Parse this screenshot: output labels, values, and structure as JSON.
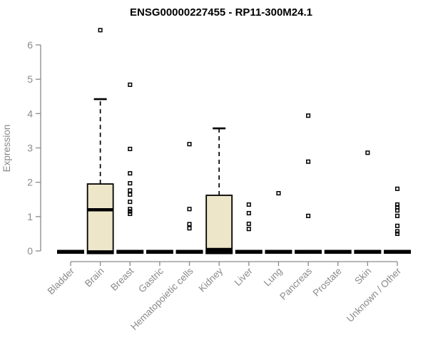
{
  "chart_data": {
    "type": "boxplot",
    "title": "ENSG00000227455 - RP11-300M24.1",
    "xlabel": "",
    "ylabel": "Expression",
    "ylim": [
      0,
      6
    ],
    "yticks": [
      0,
      1,
      2,
      3,
      4,
      5,
      6
    ],
    "grid": false,
    "legend": false,
    "categories": [
      "Bladder",
      "Brain",
      "Breast",
      "Gastric",
      "Hematopoietic cells",
      "Kidney",
      "Liver",
      "Lung",
      "Pancreas",
      "Prostate",
      "Skin",
      "Unknown / Other"
    ],
    "boxes": [
      {
        "category": "Bladder",
        "q1": 0,
        "median": 0,
        "q3": 0,
        "whisker_low": 0,
        "whisker_high": 0,
        "outliers": []
      },
      {
        "category": "Brain",
        "q1": 0,
        "median": 1.2,
        "q3": 1.95,
        "whisker_low": 0,
        "whisker_high": 4.42,
        "outliers": [
          6.43
        ]
      },
      {
        "category": "Breast",
        "q1": 0,
        "median": 0,
        "q3": 0,
        "whisker_low": 0,
        "whisker_high": 0,
        "outliers": [
          4.84,
          2.97,
          2.26,
          1.97,
          1.76,
          1.64,
          1.43,
          1.22,
          1.15,
          1.08
        ]
      },
      {
        "category": "Gastric",
        "q1": 0,
        "median": 0,
        "q3": 0,
        "whisker_low": 0,
        "whisker_high": 0,
        "outliers": []
      },
      {
        "category": "Hematopoietic cells",
        "q1": 0,
        "median": 0,
        "q3": 0,
        "whisker_low": 0,
        "whisker_high": 0,
        "outliers": [
          3.11,
          1.22,
          0.78,
          0.66
        ]
      },
      {
        "category": "Kidney",
        "q1": 0,
        "median": 0,
        "q3": 1.62,
        "whisker_low": 0,
        "whisker_high": 3.57,
        "outliers": []
      },
      {
        "category": "Liver",
        "q1": 0,
        "median": 0,
        "q3": 0,
        "whisker_low": 0,
        "whisker_high": 0,
        "outliers": [
          1.35,
          1.1,
          0.79,
          0.64
        ]
      },
      {
        "category": "Lung",
        "q1": 0,
        "median": 0,
        "q3": 0,
        "whisker_low": 0,
        "whisker_high": 0,
        "outliers": [
          1.68
        ]
      },
      {
        "category": "Pancreas",
        "q1": 0,
        "median": 0,
        "q3": 0,
        "whisker_low": 0,
        "whisker_high": 0,
        "outliers": [
          3.94,
          2.6,
          1.02
        ]
      },
      {
        "category": "Prostate",
        "q1": 0,
        "median": 0,
        "q3": 0,
        "whisker_low": 0,
        "whisker_high": 0,
        "outliers": []
      },
      {
        "category": "Skin",
        "q1": 0,
        "median": 0,
        "q3": 0,
        "whisker_low": 0,
        "whisker_high": 0,
        "outliers": [
          2.86
        ]
      },
      {
        "category": "Unknown / Other",
        "q1": 0,
        "median": 0,
        "q3": 0,
        "whisker_low": 0,
        "whisker_high": 0,
        "outliers": [
          1.81,
          1.35,
          1.27,
          1.18,
          1.02,
          0.73,
          0.57,
          0.5
        ]
      }
    ],
    "colors": {
      "box_fill": "#EDE6C9",
      "box_border": "#000000",
      "median": "#000000",
      "whisker": "#000000",
      "outlier": "#000000",
      "axis": "#8a8a8a",
      "tick_label": "#8a8a8a",
      "title": "#000000",
      "background": "#ffffff"
    }
  }
}
